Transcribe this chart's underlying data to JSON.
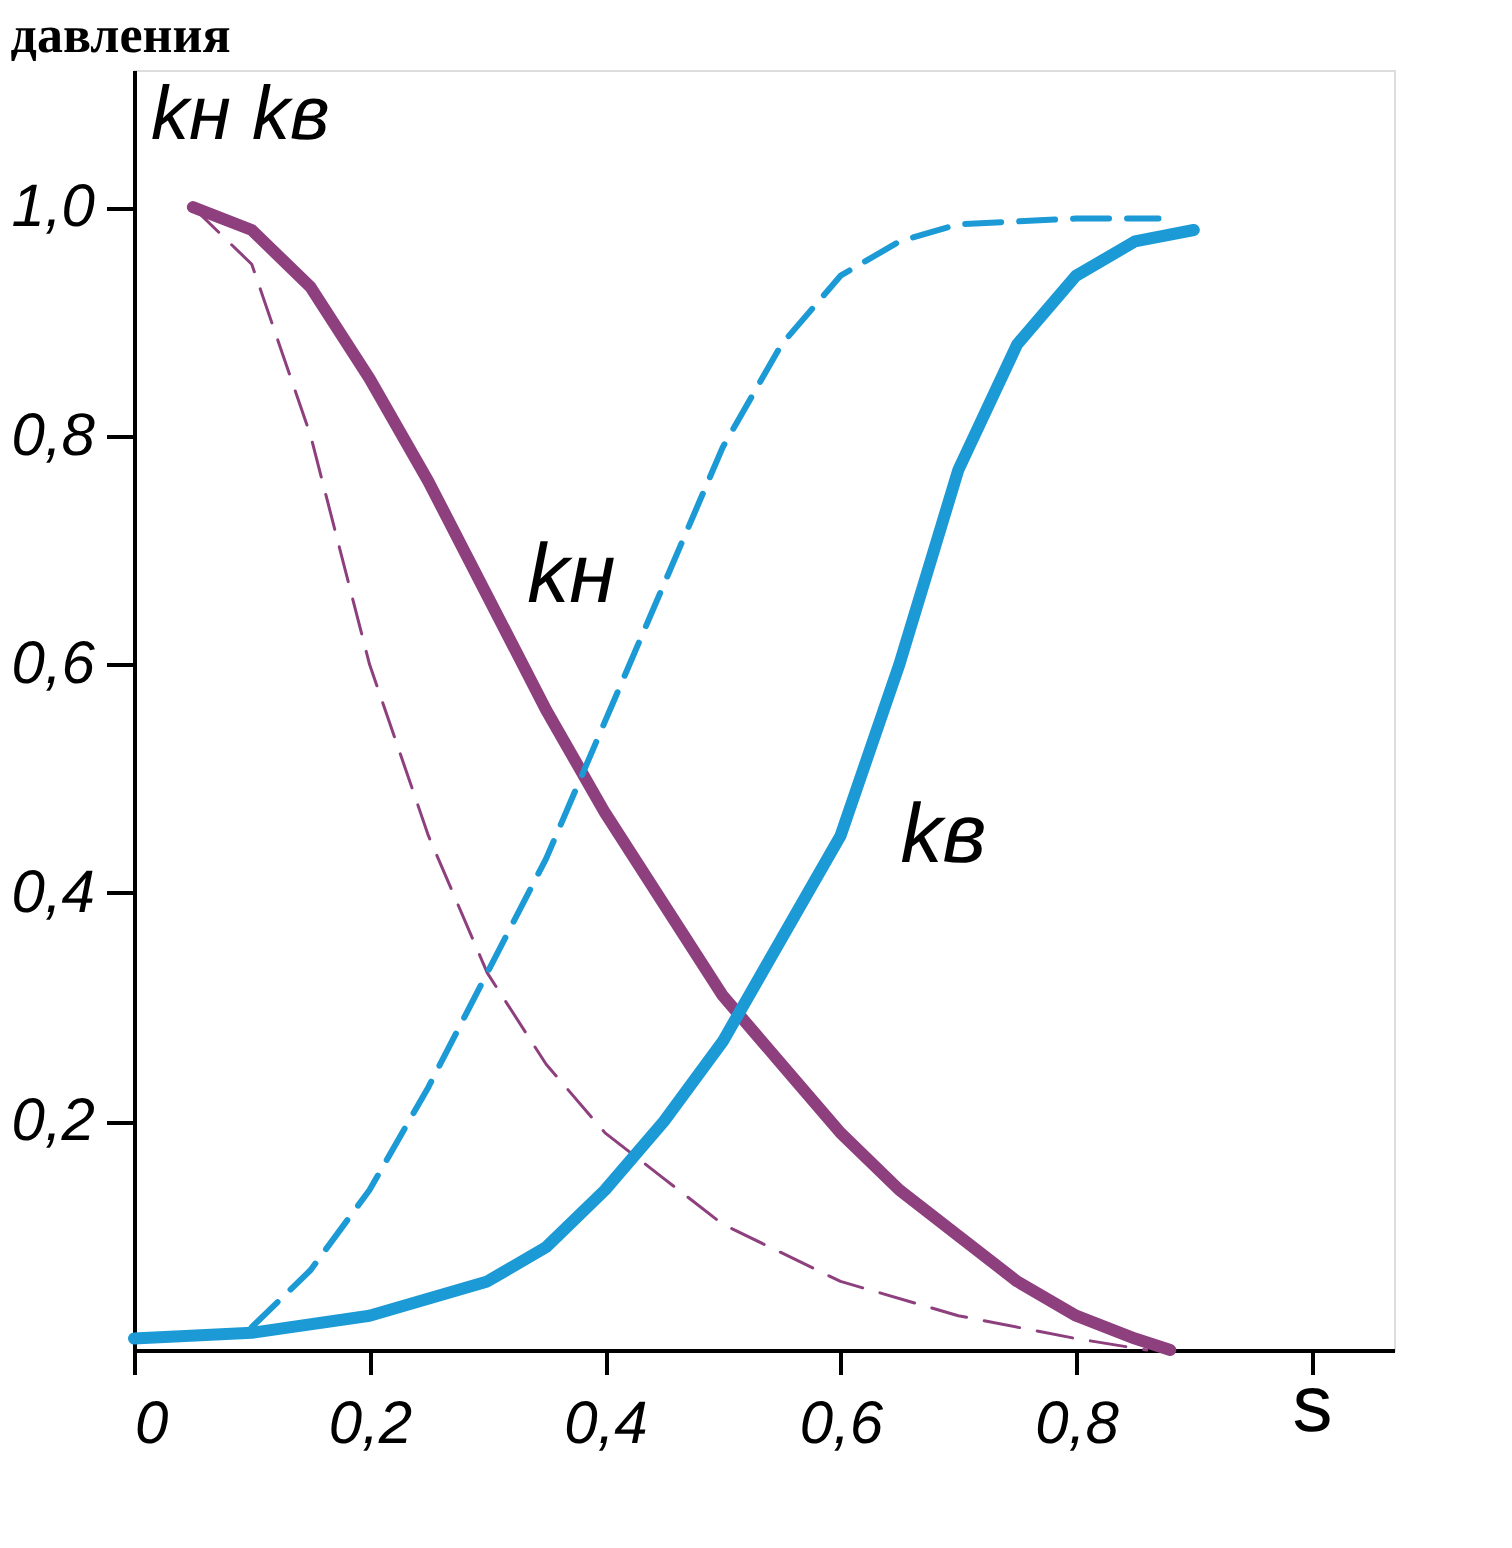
{
  "chart_data": {
    "type": "line",
    "title": "давления",
    "xlabel": "s",
    "ylabel": "kн  kв",
    "xlim": [
      0,
      1.07
    ],
    "ylim": [
      0,
      1.12
    ],
    "xticks": [
      {
        "value": 0,
        "label": "0"
      },
      {
        "value": 0.2,
        "label": "0,2"
      },
      {
        "value": 0.4,
        "label": "0,4"
      },
      {
        "value": 0.6,
        "label": "0,6"
      },
      {
        "value": 0.8,
        "label": "0,8"
      },
      {
        "value": 1.0,
        "label": null
      }
    ],
    "yticks": [
      {
        "value": 0.2,
        "label": "0,2"
      },
      {
        "value": 0.4,
        "label": "0,4"
      },
      {
        "value": 0.6,
        "label": "0,6"
      },
      {
        "value": 0.8,
        "label": "0,8"
      },
      {
        "value": 1.0,
        "label": "1,0"
      }
    ],
    "grid": false,
    "series": [
      {
        "name": "kн",
        "color": "#8e3f7e",
        "line_style": "solid",
        "x": [
          0.05,
          0.1,
          0.15,
          0.2,
          0.25,
          0.3,
          0.35,
          0.4,
          0.45,
          0.5,
          0.55,
          0.6,
          0.65,
          0.7,
          0.75,
          0.8,
          0.85,
          0.88
        ],
        "values": [
          1.0,
          0.98,
          0.93,
          0.85,
          0.76,
          0.66,
          0.56,
          0.47,
          0.39,
          0.31,
          0.25,
          0.19,
          0.14,
          0.1,
          0.06,
          0.03,
          0.01,
          0.0
        ]
      },
      {
        "color": "#8e3f7e",
        "line_style": "dashed",
        "x": [
          0.05,
          0.1,
          0.15,
          0.2,
          0.25,
          0.3,
          0.35,
          0.4,
          0.45,
          0.5,
          0.6,
          0.7,
          0.8,
          0.86
        ],
        "values": [
          1.0,
          0.95,
          0.8,
          0.6,
          0.45,
          0.33,
          0.25,
          0.19,
          0.15,
          0.11,
          0.06,
          0.03,
          0.01,
          0.0
        ]
      },
      {
        "name": "kв",
        "color": "#1b9ad6",
        "line_style": "solid",
        "x": [
          0,
          0.1,
          0.2,
          0.3,
          0.35,
          0.4,
          0.45,
          0.5,
          0.55,
          0.6,
          0.65,
          0.7,
          0.75,
          0.8,
          0.85,
          0.9
        ],
        "values": [
          0.01,
          0.015,
          0.03,
          0.06,
          0.09,
          0.14,
          0.2,
          0.27,
          0.36,
          0.45,
          0.6,
          0.77,
          0.88,
          0.94,
          0.97,
          0.98
        ]
      },
      {
        "color": "#1b9ad6",
        "line_style": "dashed",
        "x": [
          0.1,
          0.15,
          0.2,
          0.25,
          0.3,
          0.35,
          0.4,
          0.45,
          0.5,
          0.55,
          0.6,
          0.65,
          0.7,
          0.8,
          0.87
        ],
        "values": [
          0.02,
          0.07,
          0.14,
          0.23,
          0.33,
          0.43,
          0.55,
          0.67,
          0.79,
          0.88,
          0.94,
          0.97,
          0.985,
          0.99,
          0.99
        ]
      }
    ]
  }
}
